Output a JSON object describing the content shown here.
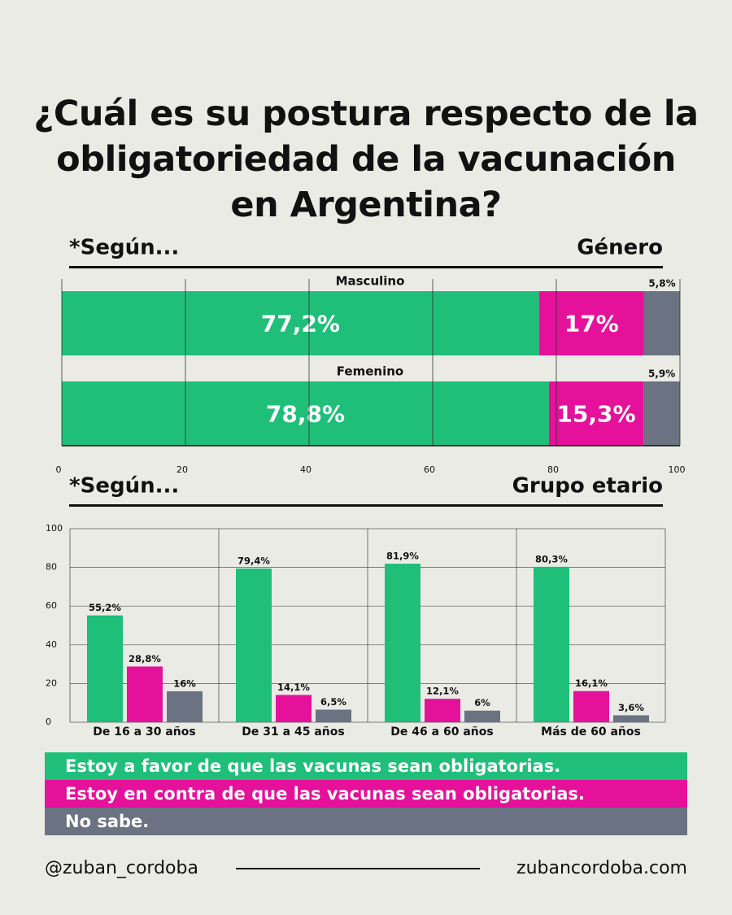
{
  "title": "¿Cuál es su postura respecto de la obligatoriedad de la vacunación en Argentina?",
  "chart_data": [
    {
      "type": "bar",
      "orientation": "horizontal",
      "stacked": true,
      "section_prefix": "*Según...",
      "section_label": "Género",
      "categories": [
        "Masculino",
        "Femenino"
      ],
      "series": [
        {
          "color": "#1fbf79",
          "values": [
            77.2,
            78.8
          ],
          "value_labels": [
            "77,2%",
            "78,8%"
          ]
        },
        {
          "color": "#e5119a",
          "values": [
            17,
            15.3
          ],
          "value_labels": [
            "17%",
            "15,3%"
          ]
        },
        {
          "color": "#6b7282",
          "values": [
            5.8,
            5.9
          ],
          "value_labels": [
            "5,8%",
            "5,9%"
          ]
        }
      ],
      "xlim": [
        0,
        100
      ],
      "xticks": [
        0,
        20,
        40,
        60,
        80,
        100
      ],
      "grid": true
    },
    {
      "type": "bar",
      "section_prefix": "*Según...",
      "section_label": "Grupo etario",
      "categories": [
        "De 16 a 30 años",
        "De 31 a 45 años",
        "De 46 a 60 años",
        "Más de 60 años"
      ],
      "series": [
        {
          "name": "Estoy a favor de que las vacunas sean obligatorias.",
          "color": "#1fbf79",
          "values": [
            55.2,
            79.4,
            81.9,
            80.3
          ],
          "value_labels": [
            "55,2%",
            "79,4%",
            "81,9%",
            "80,3%"
          ]
        },
        {
          "name": "Estoy en contra de que las vacunas sean obligatorias.",
          "color": "#e5119a",
          "values": [
            28.8,
            14.1,
            12.1,
            16.1
          ],
          "value_labels": [
            "28,8%",
            "14,1%",
            "12,1%",
            "16,1%"
          ]
        },
        {
          "name": "No sabe.",
          "color": "#6b7282",
          "values": [
            16,
            6.5,
            6,
            3.6
          ],
          "value_labels": [
            "16%",
            "6,5%",
            "6%",
            "3,6%"
          ]
        }
      ],
      "ylim": [
        0,
        100
      ],
      "yticks": [
        0,
        20,
        40,
        60,
        80,
        100
      ],
      "grid": true
    }
  ],
  "footer": {
    "handle": "@zuban_cordoba",
    "website": "zubancordoba.com"
  }
}
